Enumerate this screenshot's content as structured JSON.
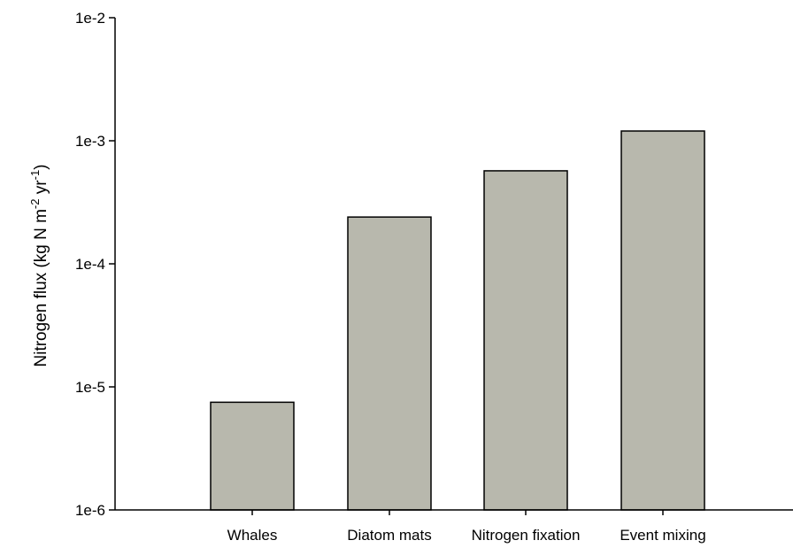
{
  "chart_data": {
    "type": "bar",
    "categories": [
      "Whales",
      "Diatom mats",
      "Nitrogen fixation",
      "Event mixing"
    ],
    "values": [
      7.5e-06,
      0.00024,
      0.00057,
      0.0012
    ],
    "xlabel": "",
    "ylabel": {
      "prefix": "Nitrogen flux (kg N m",
      "exp1": "-2",
      "middle": " yr",
      "exp2": "-1",
      "suffix": ")"
    },
    "yscale": "log",
    "ylim": [
      1e-06,
      0.01
    ],
    "yticks": [
      {
        "value": 1e-06,
        "label": "1e-6"
      },
      {
        "value": 1e-05,
        "label": "1e-5"
      },
      {
        "value": 0.0001,
        "label": "1e-4"
      },
      {
        "value": 0.001,
        "label": "1e-3"
      },
      {
        "value": 0.01,
        "label": "1e-2"
      }
    ],
    "grid": false,
    "legend": "none",
    "bar_color": "#b8b8ad",
    "bar_edge_color": "#000000"
  }
}
